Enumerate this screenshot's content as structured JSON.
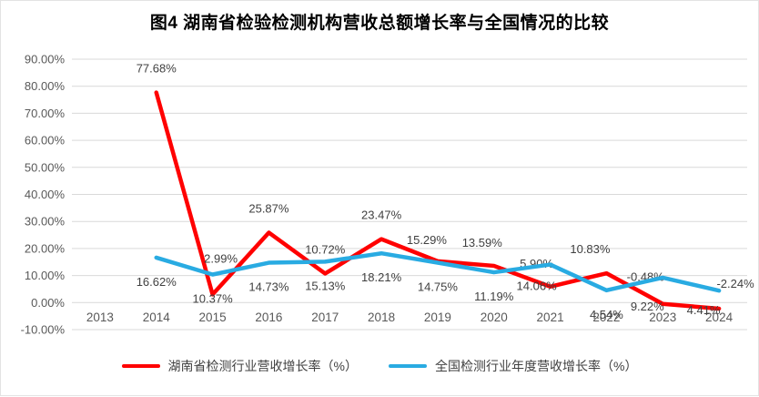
{
  "chart_data": {
    "type": "line",
    "title": "图4  湖南省检验检测机构营收总额增长率与全国情况的比较",
    "categories": [
      "2013",
      "2014",
      "2015",
      "2016",
      "2017",
      "2018",
      "2019",
      "2020",
      "2021",
      "2022",
      "2023",
      "2024"
    ],
    "series": [
      {
        "name": "湖南省检测行业营收增长率（%）",
        "color": "#FF0000",
        "values": [
          null,
          77.68,
          2.99,
          25.87,
          10.72,
          23.47,
          15.29,
          13.59,
          5.9,
          10.83,
          -0.48,
          -2.24
        ],
        "data_labels": [
          "",
          "77.68%",
          "2.99%",
          "25.87%",
          "10.72%",
          "23.47%",
          "15.29%",
          "13.59%",
          "5.90%",
          "10.83%",
          "-0.48%",
          "-2.24%"
        ]
      },
      {
        "name": "全国检测行业年度营收增长率（%）",
        "color": "#29ABE2",
        "values": [
          null,
          16.62,
          10.37,
          14.73,
          15.13,
          18.21,
          14.75,
          11.19,
          14.06,
          4.54,
          9.22,
          4.41
        ],
        "data_labels": [
          "",
          "16.62%",
          "10.37%",
          "14.73%",
          "15.13%",
          "18.21%",
          "14.75%",
          "11.19%",
          "14.06%",
          "4.54%",
          "9.22%",
          "4.41%"
        ]
      }
    ],
    "y_axis": {
      "min": -10,
      "max": 90,
      "step": 10,
      "tick_labels": [
        "90.00%",
        "80.00%",
        "70.00%",
        "60.00%",
        "50.00%",
        "40.00%",
        "30.00%",
        "20.00%",
        "10.00%",
        "0.00%",
        "-10.00%"
      ]
    },
    "x_axis": {
      "tick_labels": [
        "2013",
        "2014",
        "2015",
        "2016",
        "2017",
        "2018",
        "2019",
        "2020",
        "2021",
        "2022",
        "2023",
        "2024"
      ]
    },
    "grid": true,
    "legend_position": "bottom",
    "colors": {
      "gridline": "#D9D9D9",
      "axis_text": "#595959",
      "label_text": "#404040",
      "background": "#FFFFFF"
    }
  },
  "legend": {
    "items": [
      {
        "label": "湖南省检测行业营收增长率（%）",
        "color": "#FF0000"
      },
      {
        "label": "全国检测行业年度营收增长率（%）",
        "color": "#29ABE2"
      }
    ]
  }
}
